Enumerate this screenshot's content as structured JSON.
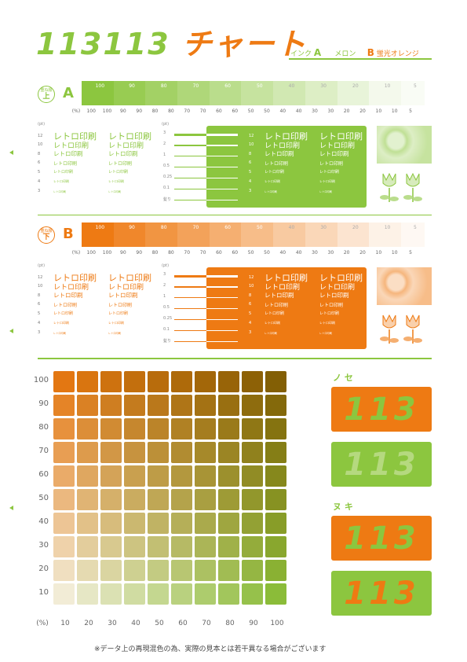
{
  "title": {
    "part1": "113",
    "part2": "113",
    "part3": "チャート"
  },
  "ink": {
    "label": "インク",
    "a_letter": "A",
    "a_name": "メロン",
    "b_letter": "B",
    "b_name": "蛍光オレンジ"
  },
  "section_a": {
    "badge_top": "重ね順",
    "badge_char": "上",
    "letter": "A"
  },
  "section_b": {
    "badge_top": "重ね順",
    "badge_char": "下",
    "letter": "B"
  },
  "strip_labels": [
    "100",
    "90",
    "80",
    "70",
    "60",
    "50",
    "40",
    "30",
    "20",
    "10"
  ],
  "strip_small_labels": [
    "5",
    "5"
  ],
  "pct_label": "(%)",
  "pct_row": [
    "100",
    "100",
    "90",
    "90",
    "80",
    "80",
    "70",
    "70",
    "60",
    "60",
    "50",
    "50",
    "40",
    "40",
    "30",
    "30",
    "20",
    "20",
    "10",
    "10",
    "5"
  ],
  "pt_label": "(pt)",
  "sample_text": "レトロ印刷",
  "font_sizes": [
    "12",
    "10",
    "8",
    "6",
    "5",
    "4",
    "3"
  ],
  "line_sizes": [
    "3",
    "2",
    "1",
    "0.5",
    "0.25",
    "0.1",
    "髪り"
  ],
  "colors": {
    "green": "#8cc63f",
    "orange": "#ee7a13"
  },
  "grid": {
    "rows": [
      "100",
      "90",
      "80",
      "70",
      "60",
      "50",
      "40",
      "30",
      "20",
      "10"
    ],
    "cols": [
      "10",
      "20",
      "30",
      "40",
      "50",
      "60",
      "70",
      "80",
      "90",
      "100"
    ],
    "pct_label": "(%)"
  },
  "samples": {
    "nose_label": "ノ セ",
    "nuki_label": "ヌ キ",
    "text": "113"
  },
  "footnote": "※データ上の再現混色の為、実際の見本とは若干異なる場合がございます"
}
